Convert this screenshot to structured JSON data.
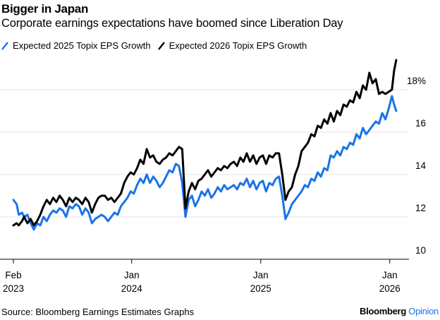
{
  "header": {
    "title": "Bigger in Japan",
    "subtitle": "Corporate earnings expectations have boomed since Liberation Day"
  },
  "footer": {
    "source": "Source: Bloomberg Earnings Estimates Graphs",
    "brand_main": "Bloomberg",
    "brand_sub": "Opinion"
  },
  "chart_data": {
    "type": "line",
    "title": "Bigger in Japan",
    "subtitle": "Corporate earnings expectations have boomed since Liberation Day",
    "xlabel": "",
    "ylabel": "",
    "ylim": [
      10,
      19.5
    ],
    "y_ticks": [
      10,
      12,
      14,
      16,
      18
    ],
    "y_tick_labels": [
      "10",
      "12",
      "14",
      "16",
      "18%"
    ],
    "x_range": [
      "2023-02",
      "2026-01-20"
    ],
    "x_ticks": [
      {
        "date": "2023-02",
        "label_top": "Feb",
        "label_bottom": "2023"
      },
      {
        "date": "2024-01",
        "label_top": "Jan",
        "label_bottom": "2024"
      },
      {
        "date": "2025-01",
        "label_top": "Jan",
        "label_bottom": "2025"
      },
      {
        "date": "2026-01",
        "label_top": "Jan",
        "label_bottom": "2026"
      }
    ],
    "grid": true,
    "legend_placement": "top-left",
    "source": "Source: Bloomberg Earnings Estimates Graphs",
    "series": [
      {
        "name": "Expected 2025 Topix EPS Growth",
        "color": "#1a73e8",
        "x_months": [
          0.0,
          0.3,
          0.5,
          0.8,
          1.0,
          1.3,
          1.6,
          1.9,
          2.2,
          2.5,
          2.8,
          3.1,
          3.4,
          3.7,
          4.0,
          4.3,
          4.6,
          4.9,
          5.2,
          5.5,
          5.8,
          6.1,
          6.4,
          6.7,
          7.0,
          7.3,
          7.6,
          7.9,
          8.2,
          8.5,
          8.8,
          9.1,
          9.4,
          9.7,
          10.0,
          10.3,
          10.6,
          10.9,
          11.2,
          11.5,
          11.8,
          12.1,
          12.4,
          12.7,
          13.0,
          13.3,
          13.6,
          13.9,
          14.2,
          14.5,
          14.8,
          15.1,
          15.4,
          15.7,
          16.0,
          16.3,
          16.6,
          16.9,
          17.2,
          17.5,
          17.8,
          18.1,
          18.4,
          18.7,
          19.0,
          19.3,
          19.6,
          19.9,
          20.2,
          20.5,
          20.8,
          21.1,
          21.4,
          21.7,
          22.0,
          22.3,
          22.6,
          22.9,
          23.2,
          23.5,
          23.8,
          24.1,
          24.4,
          24.7,
          25.0,
          25.3,
          25.6,
          25.9,
          26.2,
          26.5,
          26.8,
          27.1,
          27.4,
          27.7,
          28.0,
          28.3,
          28.6,
          28.9,
          29.2,
          29.5,
          29.8,
          30.1,
          30.4,
          30.7,
          31.0,
          31.3,
          31.6,
          31.9,
          32.2,
          32.5,
          32.8,
          33.1,
          33.4,
          33.7,
          34.0,
          34.3,
          34.6,
          34.9,
          35.2,
          35.4,
          35.6
        ],
        "values": [
          12.8,
          12.6,
          12.1,
          12.2,
          12.0,
          12.1,
          11.7,
          11.4,
          11.7,
          11.6,
          12.0,
          11.8,
          12.1,
          12.3,
          12.2,
          12.4,
          12.3,
          12.0,
          12.5,
          12.4,
          12.6,
          12.5,
          12.1,
          12.4,
          12.2,
          11.7,
          11.9,
          12.0,
          12.1,
          12.0,
          11.8,
          12.0,
          12.2,
          12.1,
          12.5,
          12.7,
          12.9,
          13.2,
          13.1,
          13.5,
          13.8,
          13.6,
          14.0,
          13.6,
          13.9,
          13.7,
          13.4,
          13.6,
          13.9,
          14.2,
          14.1,
          14.5,
          14.4,
          13.6,
          12.0,
          12.8,
          13.0,
          12.5,
          12.8,
          13.2,
          13.0,
          13.3,
          12.9,
          13.1,
          13.4,
          13.2,
          13.5,
          13.3,
          13.4,
          13.5,
          13.3,
          13.6,
          13.5,
          13.8,
          13.4,
          13.7,
          13.3,
          13.6,
          13.7,
          13.2,
          13.6,
          13.5,
          13.8,
          13.9,
          13.0,
          11.9,
          12.2,
          12.6,
          12.8,
          13.0,
          13.2,
          13.5,
          13.4,
          13.8,
          13.7,
          14.1,
          13.9,
          14.3,
          14.2,
          14.9,
          14.8,
          15.1,
          14.9,
          15.3,
          15.2,
          15.5,
          15.4,
          15.9,
          15.7,
          16.2,
          15.9,
          16.1,
          16.3,
          16.5,
          16.4,
          16.9,
          16.6,
          17.1,
          17.7,
          17.3,
          17.0
        ]
      },
      {
        "name": "Expected 2026 Topix EPS Growth",
        "color": "#000000",
        "x_months": [
          0.0,
          0.3,
          0.5,
          0.8,
          1.0,
          1.3,
          1.6,
          1.9,
          2.2,
          2.5,
          2.8,
          3.1,
          3.4,
          3.7,
          4.0,
          4.3,
          4.6,
          4.9,
          5.2,
          5.5,
          5.8,
          6.1,
          6.4,
          6.7,
          7.0,
          7.3,
          7.6,
          7.9,
          8.2,
          8.5,
          8.8,
          9.1,
          9.4,
          9.7,
          10.0,
          10.3,
          10.6,
          10.9,
          11.2,
          11.5,
          11.8,
          12.1,
          12.4,
          12.7,
          13.0,
          13.3,
          13.6,
          13.9,
          14.2,
          14.5,
          14.8,
          15.1,
          15.4,
          15.7,
          16.0,
          16.3,
          16.6,
          16.9,
          17.2,
          17.5,
          17.8,
          18.1,
          18.4,
          18.7,
          19.0,
          19.3,
          19.6,
          19.9,
          20.2,
          20.5,
          20.8,
          21.1,
          21.4,
          21.7,
          22.0,
          22.3,
          22.6,
          22.9,
          23.2,
          23.5,
          23.8,
          24.1,
          24.4,
          24.7,
          25.0,
          25.3,
          25.6,
          25.9,
          26.2,
          26.5,
          26.8,
          27.1,
          27.4,
          27.7,
          28.0,
          28.3,
          28.6,
          28.9,
          29.2,
          29.5,
          29.8,
          30.1,
          30.4,
          30.7,
          31.0,
          31.3,
          31.6,
          31.9,
          32.2,
          32.5,
          32.8,
          33.1,
          33.4,
          33.7,
          34.0,
          34.3,
          34.6,
          34.9,
          35.2,
          35.4,
          35.6
        ],
        "values": [
          11.6,
          11.7,
          11.6,
          11.8,
          12.0,
          11.7,
          11.9,
          11.6,
          11.8,
          12.1,
          12.5,
          12.8,
          12.6,
          12.9,
          12.7,
          13.0,
          12.8,
          12.5,
          12.9,
          12.7,
          12.9,
          12.8,
          12.6,
          12.9,
          12.7,
          12.2,
          12.6,
          12.9,
          13.0,
          13.0,
          12.8,
          12.9,
          12.7,
          12.9,
          13.1,
          13.6,
          13.9,
          14.1,
          14.0,
          14.3,
          14.7,
          14.5,
          15.2,
          14.8,
          14.9,
          14.6,
          14.5,
          14.7,
          14.8,
          15.0,
          14.9,
          15.1,
          15.3,
          15.2,
          12.4,
          13.2,
          13.6,
          13.3,
          13.7,
          13.8,
          14.0,
          14.2,
          13.9,
          14.1,
          14.3,
          14.2,
          14.4,
          14.3,
          14.5,
          14.6,
          14.4,
          14.8,
          14.6,
          15.0,
          14.6,
          14.9,
          14.5,
          14.8,
          14.9,
          14.5,
          14.9,
          14.8,
          15.0,
          15.0,
          14.0,
          12.8,
          13.2,
          13.4,
          14.0,
          14.4,
          15.1,
          15.3,
          15.5,
          15.9,
          15.8,
          16.3,
          16.2,
          16.6,
          16.4,
          16.9,
          16.5,
          17.0,
          16.8,
          17.3,
          17.2,
          17.5,
          17.4,
          17.9,
          17.6,
          18.2,
          18.0,
          18.8,
          18.3,
          18.5,
          17.8,
          17.9,
          17.8,
          17.9,
          18.0,
          18.9,
          19.4
        ]
      }
    ]
  }
}
